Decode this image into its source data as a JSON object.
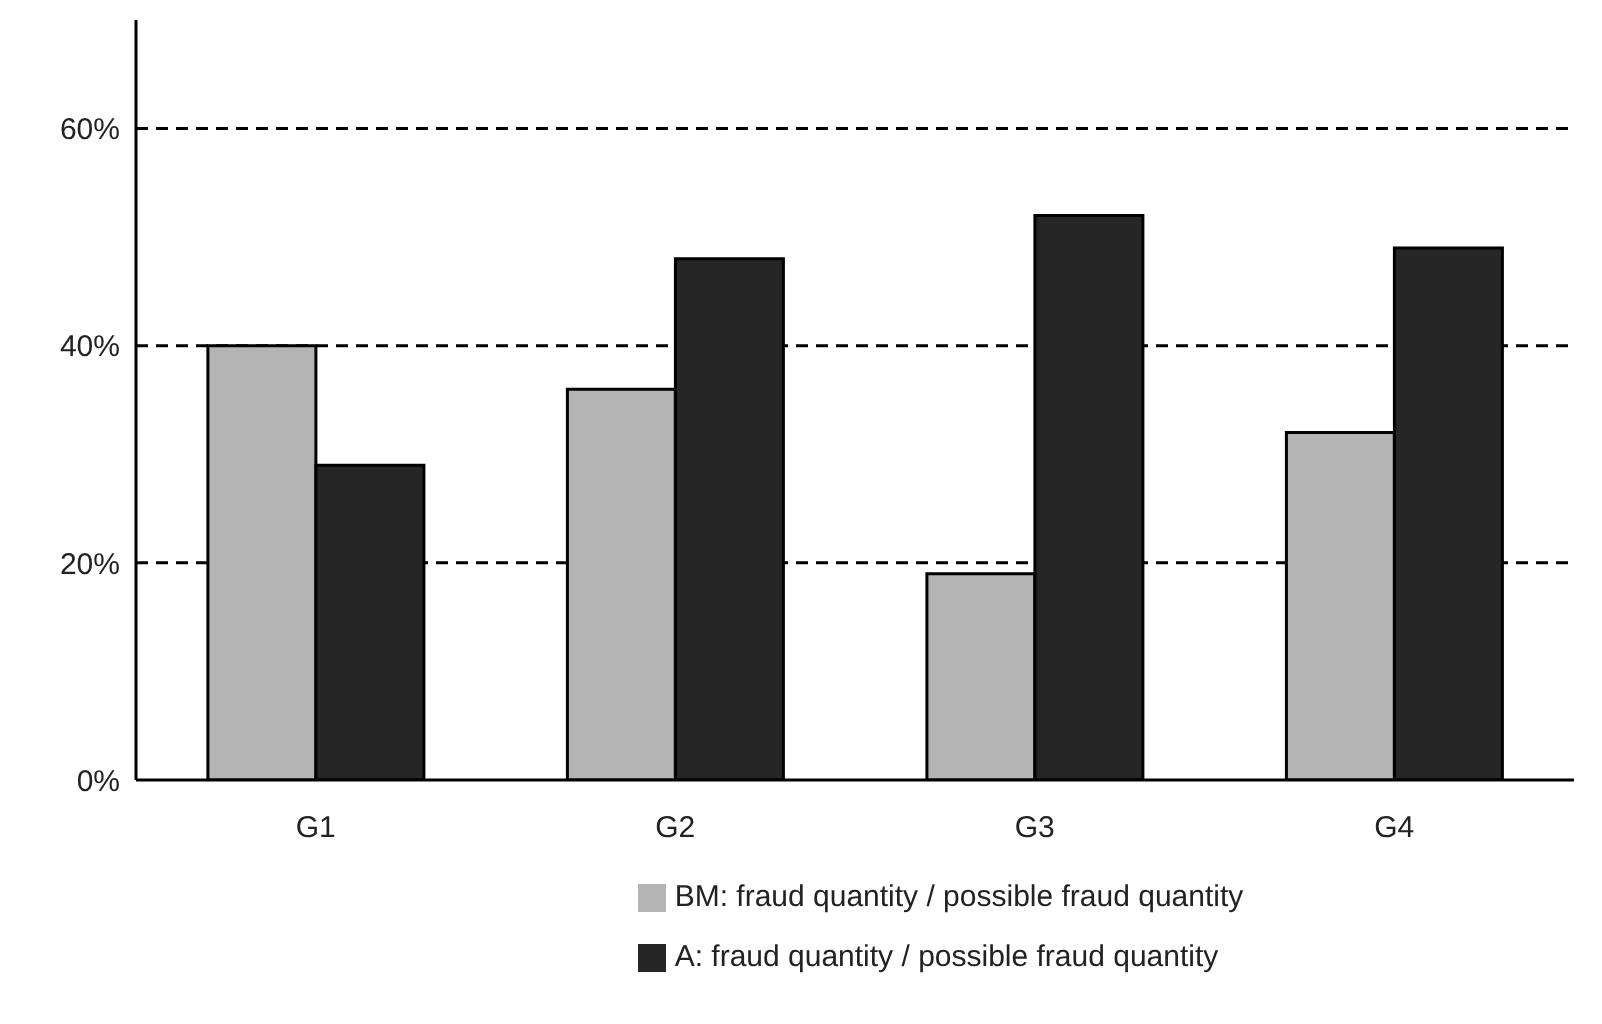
{
  "chart_data": {
    "type": "bar",
    "categories": [
      "G1",
      "G2",
      "G3",
      "G4"
    ],
    "series": [
      {
        "name": "BM: fraud quantity / possible fraud quantity",
        "color": "#b4b4b4",
        "values": [
          40,
          36,
          19,
          32
        ]
      },
      {
        "name": "A: fraud quantity / possible fraud quantity",
        "color": "#262626",
        "values": [
          29,
          48,
          52,
          49
        ]
      }
    ],
    "ylim": [
      0,
      70
    ],
    "yticks": [
      {
        "value": 0,
        "label": "0%"
      },
      {
        "value": 20,
        "label": "20%"
      },
      {
        "value": 40,
        "label": "40%"
      },
      {
        "value": 60,
        "label": "60%"
      }
    ],
    "grid": "y",
    "legend": "bottom"
  }
}
